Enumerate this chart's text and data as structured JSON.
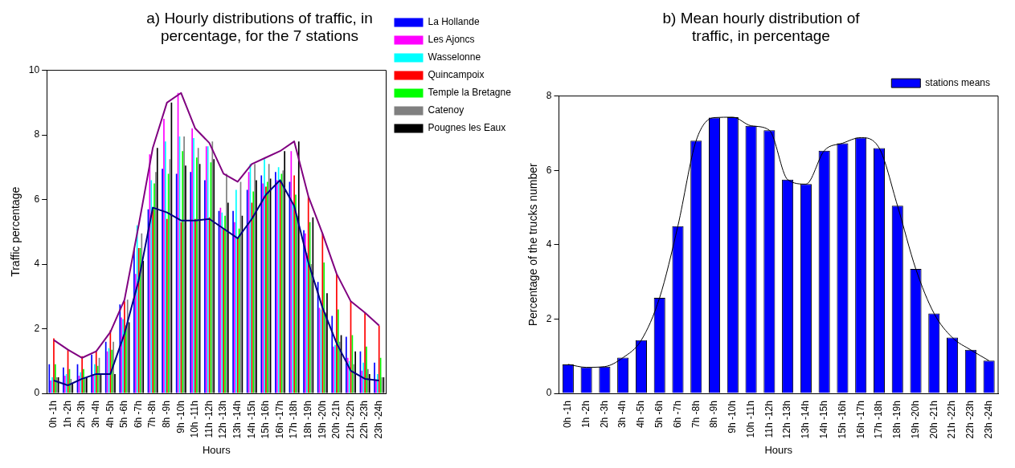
{
  "chart_data": [
    {
      "type": "bar",
      "title": "a) Hourly distributions of traffic, in percentage, for the 7 stations",
      "xlabel": "Hours",
      "ylabel": "Traffic percentage",
      "categories": [
        "0h -1h",
        "1h -2h",
        "2h -3h",
        "3h -4h",
        "4h -5h",
        "5h -6h",
        "6h -7h",
        "7h -8h",
        "8h -9h",
        "9h -10h",
        "10h -11h",
        "11h -12h",
        "12h -13h",
        "13h -14h",
        "14h -15h",
        "15h -16h",
        "16h -17h",
        "17h -18h",
        "18h -19h",
        "19h -20h",
        "20h -21h",
        "21h -22h",
        "22h -23h",
        "23h -24h"
      ],
      "ylim": [
        0,
        10
      ],
      "yticks": [
        0,
        2,
        4,
        6,
        8,
        10
      ],
      "grid": false,
      "legend": "right",
      "series": [
        {
          "name": "La Hollande",
          "color": "#0000ff",
          "values": [
            0.9,
            0.8,
            0.9,
            1.2,
            1.6,
            2.75,
            4.5,
            5.7,
            6.95,
            6.8,
            6.85,
            6.6,
            5.65,
            5.65,
            6.3,
            6.75,
            6.85,
            6.55,
            5.05,
            3.45,
            2.4,
            1.75,
            1.3,
            0.95
          ]
        },
        {
          "name": "Les Ajoncs",
          "color": "#ff00ff",
          "values": [
            0.4,
            0.55,
            0.55,
            0.6,
            1.3,
            2.35,
            3.7,
            7.4,
            8.5,
            9.3,
            8.2,
            7.65,
            5.75,
            5.3,
            6.85,
            6.5,
            6.6,
            7.5,
            4.95,
            2.65,
            1.45,
            1.1,
            0.7,
            0.4
          ]
        },
        {
          "name": "Wasselonne",
          "color": "#00ffff",
          "values": [
            0.5,
            0.6,
            0.65,
            0.9,
            1.4,
            2.3,
            5.2,
            6.6,
            7.8,
            7.95,
            7.9,
            7.65,
            5.6,
            6.3,
            7.1,
            7.25,
            7.0,
            5.9,
            4.35,
            2.6,
            1.5,
            1.0,
            0.95,
            0.6
          ]
        },
        {
          "name": "Quincampoix",
          "color": "#ff0000",
          "values": [
            1.7,
            1.35,
            1.15,
            1.3,
            1.95,
            2.85,
            4.5,
            5.7,
            5.4,
            5.3,
            5.4,
            5.45,
            5.1,
            4.8,
            5.9,
            6.4,
            6.6,
            6.75,
            6.1,
            4.95,
            3.7,
            2.85,
            2.5,
            2.1
          ]
        },
        {
          "name": "Temple la Bretagne",
          "color": "#00ff00",
          "values": [
            0.9,
            0.75,
            0.75,
            0.85,
            1.35,
            2.1,
            4.5,
            6.5,
            6.8,
            7.5,
            7.3,
            7.15,
            5.5,
            5.1,
            6.25,
            6.55,
            6.8,
            6.15,
            5.3,
            4.05,
            2.6,
            1.8,
            1.45,
            1.1
          ]
        },
        {
          "name": "Catenoy",
          "color": "#808080",
          "values": [
            0.5,
            0.45,
            0.5,
            1.1,
            1.6,
            2.9,
            4.95,
            6.85,
            7.25,
            7.95,
            7.6,
            7.8,
            6.8,
            6.55,
            7.1,
            7.1,
            6.9,
            5.5,
            4.0,
            2.5,
            1.6,
            0.9,
            0.75,
            0.5
          ]
        },
        {
          "name": "Pougnes les Eaux",
          "color": "#000000",
          "values": [
            0.5,
            0.3,
            0.5,
            0.6,
            0.6,
            2.2,
            4.1,
            7.6,
            9.0,
            7.05,
            7.1,
            7.25,
            5.9,
            5.5,
            6.6,
            6.65,
            7.5,
            7.8,
            5.45,
            3.1,
            1.8,
            1.3,
            0.6,
            0.5
          ]
        },
        {
          "type": "line",
          "color": "#800080",
          "values": [
            1.65,
            1.35,
            1.1,
            1.3,
            1.9,
            2.9,
            5.2,
            7.6,
            9.0,
            9.3,
            8.2,
            7.75,
            6.8,
            6.55,
            7.1,
            7.3,
            7.5,
            7.8,
            6.1,
            4.95,
            3.7,
            2.85,
            2.5,
            2.1
          ]
        },
        {
          "type": "line",
          "color": "#000080",
          "values": [
            0.4,
            0.25,
            0.45,
            0.6,
            0.6,
            1.85,
            3.5,
            5.75,
            5.6,
            5.35,
            5.35,
            5.4,
            5.1,
            4.8,
            5.4,
            6.15,
            6.6,
            5.8,
            4.05,
            2.65,
            1.55,
            0.7,
            0.45,
            0.4
          ]
        }
      ]
    },
    {
      "type": "bar",
      "title": "b) Mean hourly distribution of traffic, in percentage",
      "xlabel": "Hours",
      "ylabel": "Percentage of the trucks number",
      "categories": [
        "0h -1h",
        "1h -2h",
        "2h -3h",
        "3h -4h",
        "4h -5h",
        "5h -6h",
        "6h -7h",
        "7h -8h",
        "8h -9h",
        "9h -10h",
        "10h -11h",
        "11h -12h",
        "12h -13h",
        "13h -14h",
        "14h -15h",
        "15h -16h",
        "16h -17h",
        "17h -18h",
        "18h -19h",
        "19h -20h",
        "20h -21h",
        "21h -22h",
        "22h -23h",
        "23h -24h"
      ],
      "ylim": [
        0,
        8
      ],
      "yticks": [
        0,
        2,
        4,
        6,
        8
      ],
      "grid": false,
      "legend": "top right",
      "series": [
        {
          "name": "stations means",
          "color": "#0000ff",
          "values": [
            0.78,
            0.7,
            0.72,
            0.96,
            1.43,
            2.57,
            4.5,
            6.8,
            7.42,
            7.43,
            7.2,
            7.08,
            5.75,
            5.63,
            6.53,
            6.73,
            6.88,
            6.6,
            5.05,
            3.35,
            2.15,
            1.5,
            1.17,
            0.88
          ]
        },
        {
          "type": "line",
          "color": "#000000",
          "values": [
            0.78,
            0.7,
            0.72,
            0.96,
            1.43,
            2.57,
            4.5,
            6.8,
            7.42,
            7.43,
            7.2,
            7.08,
            5.75,
            5.63,
            6.53,
            6.73,
            6.88,
            6.6,
            5.05,
            3.35,
            2.15,
            1.5,
            1.17,
            0.88
          ]
        }
      ]
    }
  ]
}
